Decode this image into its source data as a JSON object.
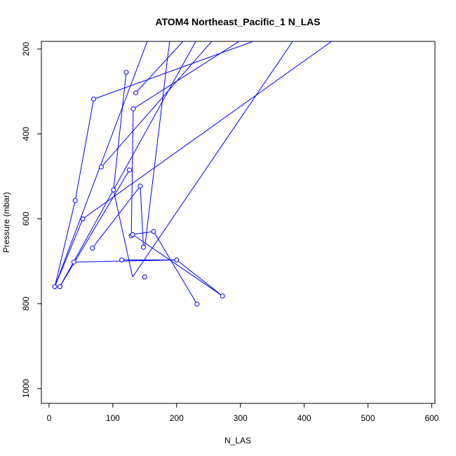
{
  "chart_data": {
    "type": "scatter",
    "title": "ATOM4 Northeast_Pacific_1 N_LAS",
    "xlabel": "N_LAS",
    "ylabel": "Pressure (mbar)",
    "xlim": [
      -12,
      605
    ],
    "ylim": [
      1035,
      182
    ],
    "y_inverted": true,
    "xticks": [
      0,
      100,
      200,
      300,
      400,
      500,
      600
    ],
    "yticks": [
      200,
      400,
      600,
      800,
      1000
    ],
    "color": "#0000ff",
    "grid": false,
    "legend": "none",
    "x": [
      148,
      70,
      41,
      9,
      17,
      53,
      82,
      101,
      121,
      126,
      136,
      132,
      143,
      150,
      129,
      131,
      164,
      68,
      39,
      114,
      200,
      232,
      272
    ],
    "y": [
      667,
      318,
      557,
      760,
      760,
      600,
      478,
      532,
      255,
      485,
      303,
      341,
      523,
      737,
      640,
      637,
      630,
      669,
      702,
      697,
      697,
      801,
      782
    ],
    "segments": [
      {
        "x": [
          148,
          70,
          41,
          9,
          121,
          70,
          41,
          9,
          17,
          53,
          82,
          101,
          121,
          126,
          136,
          132,
          143,
          150,
          129,
          131,
          164,
          68,
          39,
          114,
          200,
          232,
          272,
          131,
          143,
          150
        ],
        "y": []
      }
    ],
    "lines": [
      {
        "from": [
          148,
          667
        ],
        "to": [
          143,
          523
        ]
      },
      {
        "from": [
          70,
          318
        ],
        "to": [
          320,
          182
        ]
      },
      {
        "from": [
          41,
          557
        ],
        "to": [
          70,
          318
        ]
      },
      {
        "from": [
          9,
          760
        ],
        "to": [
          41,
          557
        ]
      },
      {
        "from": [
          9,
          760
        ],
        "to": [
          154,
          182
        ]
      },
      {
        "from": [
          17,
          760
        ],
        "to": [
          230,
          182
        ]
      },
      {
        "from": [
          17,
          760
        ],
        "to": [
          126,
          485
        ]
      },
      {
        "from": [
          53,
          600
        ],
        "to": [
          443,
          182
        ]
      },
      {
        "from": [
          53,
          600
        ],
        "to": [
          9,
          760
        ]
      },
      {
        "from": [
          82,
          478
        ],
        "to": [
          255,
          182
        ]
      },
      {
        "from": [
          101,
          532
        ],
        "to": [
          121,
          255
        ]
      },
      {
        "from": [
          101,
          532
        ],
        "to": [
          131,
          737
        ]
      },
      {
        "from": [
          136,
          303
        ],
        "to": [
          210,
          182
        ]
      },
      {
        "from": [
          132,
          341
        ],
        "to": [
          129,
          640
        ]
      },
      {
        "from": [
          132,
          341
        ],
        "to": [
          298,
          182
        ]
      },
      {
        "from": [
          143,
          523
        ],
        "to": [
          68,
          669
        ]
      },
      {
        "from": [
          150,
          667
        ],
        "to": [
          189,
          182
        ]
      },
      {
        "from": [
          131,
          737
        ],
        "to": [
          382,
          182
        ]
      },
      {
        "from": [
          131,
          637
        ],
        "to": [
          164,
          630
        ]
      },
      {
        "from": [
          164,
          630
        ],
        "to": [
          232,
          801
        ]
      },
      {
        "from": [
          39,
          702
        ],
        "to": [
          200,
          697
        ]
      },
      {
        "from": [
          114,
          697
        ],
        "to": [
          200,
          697
        ]
      },
      {
        "from": [
          200,
          697
        ],
        "to": [
          272,
          782
        ]
      },
      {
        "from": [
          272,
          782
        ],
        "to": [
          131,
          637
        ]
      }
    ]
  }
}
